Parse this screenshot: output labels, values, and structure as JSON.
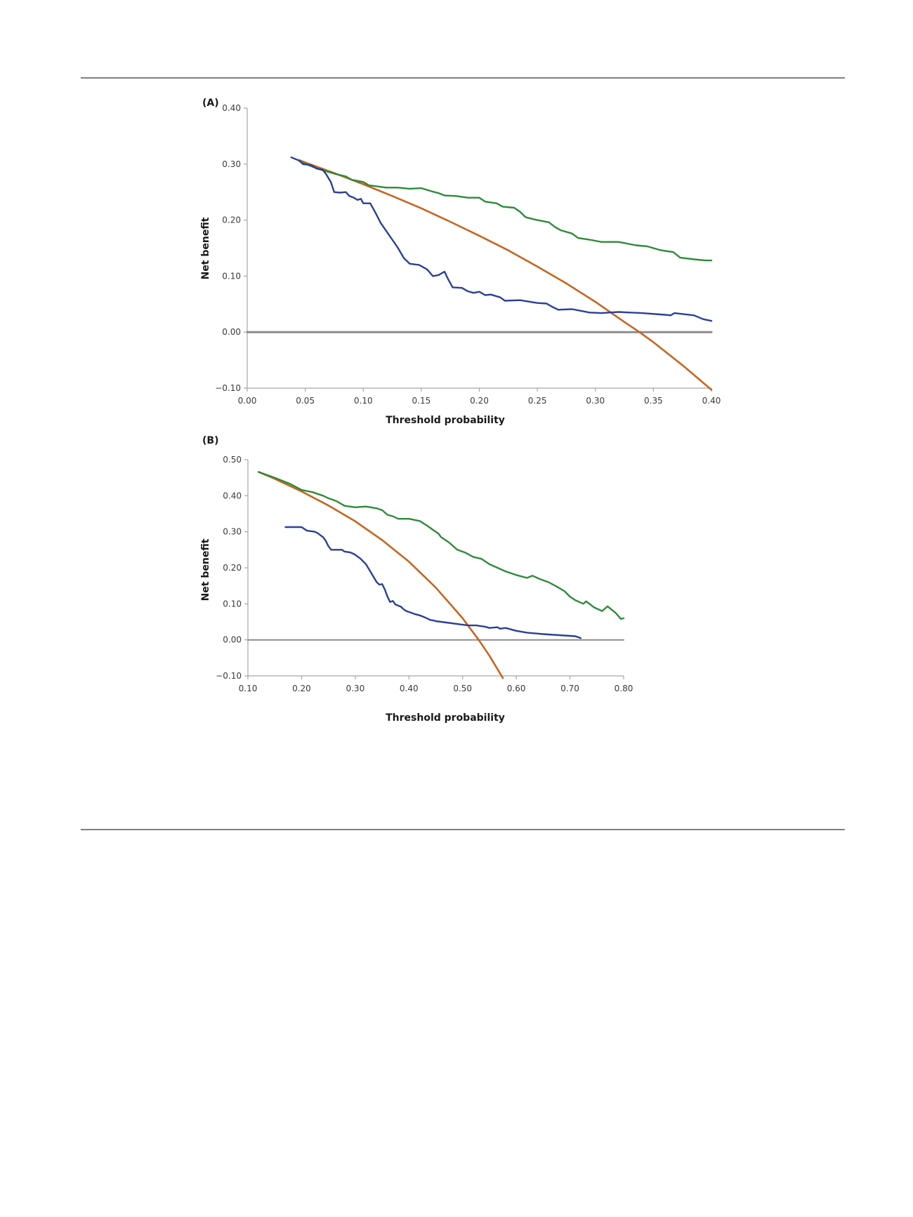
{
  "colors": {
    "model_blue": "#2b3f99",
    "model_green": "#2e8b3a",
    "treat_all_orange": "#c8651e",
    "treat_none_gray": "#8c8c8c",
    "axis": "#a6a6a6"
  },
  "chart_data": [
    {
      "type": "line",
      "panel_label": "(A)",
      "title": "",
      "xlabel": "Threshold probability",
      "ylabel": "Net benefit",
      "xlim": [
        0.0,
        0.4
      ],
      "ylim": [
        -0.1,
        0.4
      ],
      "grid": false,
      "legend": "none",
      "x_ticks": [
        "0.00",
        "0.05",
        "0.10",
        "0.15",
        "0.20",
        "0.25",
        "0.30",
        "0.35",
        "0.40"
      ],
      "y_ticks": [
        "−0.10",
        "0.00",
        "0.10",
        "0.20",
        "0.30",
        "0.40"
      ],
      "x_tick_values": [
        0.0,
        0.05,
        0.1,
        0.15,
        0.2,
        0.25,
        0.3,
        0.35,
        0.4
      ],
      "y_tick_values": [
        -0.1,
        0.0,
        0.1,
        0.2,
        0.3,
        0.4
      ],
      "series": [
        {
          "name": "blue",
          "color_key": "model_blue",
          "points": [
            [
              0.038,
              0.312
            ],
            [
              0.045,
              0.306
            ],
            [
              0.048,
              0.3
            ],
            [
              0.055,
              0.298
            ],
            [
              0.06,
              0.292
            ],
            [
              0.065,
              0.29
            ],
            [
              0.068,
              0.282
            ],
            [
              0.072,
              0.268
            ],
            [
              0.075,
              0.25
            ],
            [
              0.08,
              0.249
            ],
            [
              0.085,
              0.25
            ],
            [
              0.088,
              0.243
            ],
            [
              0.092,
              0.24
            ],
            [
              0.095,
              0.236
            ],
            [
              0.098,
              0.238
            ],
            [
              0.1,
              0.23
            ],
            [
              0.106,
              0.23
            ],
            [
              0.11,
              0.215
            ],
            [
              0.115,
              0.195
            ],
            [
              0.12,
              0.18
            ],
            [
              0.125,
              0.165
            ],
            [
              0.13,
              0.15
            ],
            [
              0.135,
              0.132
            ],
            [
              0.14,
              0.122
            ],
            [
              0.148,
              0.12
            ],
            [
              0.155,
              0.112
            ],
            [
              0.16,
              0.1
            ],
            [
              0.165,
              0.102
            ],
            [
              0.17,
              0.108
            ],
            [
              0.173,
              0.095
            ],
            [
              0.177,
              0.08
            ],
            [
              0.185,
              0.079
            ],
            [
              0.19,
              0.073
            ],
            [
              0.195,
              0.07
            ],
            [
              0.2,
              0.072
            ],
            [
              0.205,
              0.066
            ],
            [
              0.21,
              0.067
            ],
            [
              0.218,
              0.062
            ],
            [
              0.222,
              0.056
            ],
            [
              0.235,
              0.057
            ],
            [
              0.25,
              0.052
            ],
            [
              0.258,
              0.051
            ],
            [
              0.262,
              0.046
            ],
            [
              0.268,
              0.04
            ],
            [
              0.28,
              0.041
            ],
            [
              0.295,
              0.035
            ],
            [
              0.305,
              0.034
            ],
            [
              0.32,
              0.036
            ],
            [
              0.34,
              0.034
            ],
            [
              0.36,
              0.031
            ],
            [
              0.365,
              0.03
            ],
            [
              0.368,
              0.034
            ],
            [
              0.385,
              0.03
            ],
            [
              0.393,
              0.023
            ],
            [
              0.4,
              0.02
            ]
          ]
        },
        {
          "name": "green",
          "color_key": "model_green",
          "points": [
            [
              0.045,
              0.305
            ],
            [
              0.06,
              0.292
            ],
            [
              0.075,
              0.283
            ],
            [
              0.085,
              0.278
            ],
            [
              0.09,
              0.272
            ],
            [
              0.1,
              0.268
            ],
            [
              0.105,
              0.262
            ],
            [
              0.12,
              0.258
            ],
            [
              0.13,
              0.258
            ],
            [
              0.14,
              0.256
            ],
            [
              0.15,
              0.257
            ],
            [
              0.158,
              0.252
            ],
            [
              0.165,
              0.248
            ],
            [
              0.17,
              0.244
            ],
            [
              0.18,
              0.243
            ],
            [
              0.19,
              0.24
            ],
            [
              0.2,
              0.24
            ],
            [
              0.205,
              0.233
            ],
            [
              0.215,
              0.23
            ],
            [
              0.22,
              0.224
            ],
            [
              0.23,
              0.222
            ],
            [
              0.235,
              0.215
            ],
            [
              0.24,
              0.205
            ],
            [
              0.25,
              0.2
            ],
            [
              0.26,
              0.196
            ],
            [
              0.265,
              0.188
            ],
            [
              0.27,
              0.182
            ],
            [
              0.28,
              0.176
            ],
            [
              0.285,
              0.168
            ],
            [
              0.295,
              0.165
            ],
            [
              0.305,
              0.161
            ],
            [
              0.32,
              0.161
            ],
            [
              0.335,
              0.155
            ],
            [
              0.345,
              0.153
            ],
            [
              0.355,
              0.147
            ],
            [
              0.36,
              0.145
            ],
            [
              0.367,
              0.143
            ],
            [
              0.373,
              0.133
            ],
            [
              0.385,
              0.13
            ],
            [
              0.395,
              0.128
            ],
            [
              0.4,
              0.128
            ]
          ]
        },
        {
          "name": "orange",
          "color_key": "treat_all_orange",
          "points": [
            [
              0.045,
              0.307
            ],
            [
              0.05,
              0.303
            ],
            [
              0.075,
              0.284
            ],
            [
              0.1,
              0.264
            ],
            [
              0.125,
              0.243
            ],
            [
              0.15,
              0.221
            ],
            [
              0.175,
              0.197
            ],
            [
              0.2,
              0.172
            ],
            [
              0.225,
              0.146
            ],
            [
              0.25,
              0.117
            ],
            [
              0.275,
              0.087
            ],
            [
              0.3,
              0.054
            ],
            [
              0.325,
              0.018
            ],
            [
              0.338,
              0.0
            ],
            [
              0.35,
              -0.018
            ],
            [
              0.375,
              -0.059
            ],
            [
              0.4,
              -0.103
            ]
          ]
        },
        {
          "name": "gray",
          "color_key": "treat_none_gray",
          "points": [
            [
              0.0,
              0.0
            ],
            [
              0.4,
              0.0
            ]
          ]
        }
      ]
    },
    {
      "type": "line",
      "panel_label": "(B)",
      "title": "",
      "xlabel": "Threshold probability",
      "ylabel": "Net benefit",
      "xlim": [
        0.1,
        0.8
      ],
      "ylim": [
        -0.1,
        0.5
      ],
      "grid": false,
      "legend": "none",
      "x_ticks": [
        "0.10",
        "0.20",
        "0.30",
        "0.40",
        "0.50",
        "0.60",
        "0.70",
        "0.80"
      ],
      "y_ticks": [
        "−0.10",
        "0.00",
        "0.10",
        "0.20",
        "0.30",
        "0.40",
        "0.50"
      ],
      "x_tick_values": [
        0.1,
        0.2,
        0.3,
        0.4,
        0.5,
        0.6,
        0.7,
        0.8
      ],
      "y_tick_values": [
        -0.1,
        0.0,
        0.1,
        0.2,
        0.3,
        0.4,
        0.5
      ],
      "series": [
        {
          "name": "blue",
          "color_key": "model_blue",
          "points": [
            [
              0.17,
              0.313
            ],
            [
              0.2,
              0.313
            ],
            [
              0.21,
              0.303
            ],
            [
              0.225,
              0.3
            ],
            [
              0.23,
              0.296
            ],
            [
              0.24,
              0.285
            ],
            [
              0.245,
              0.275
            ],
            [
              0.25,
              0.26
            ],
            [
              0.255,
              0.25
            ],
            [
              0.275,
              0.25
            ],
            [
              0.28,
              0.245
            ],
            [
              0.29,
              0.243
            ],
            [
              0.295,
              0.24
            ],
            [
              0.3,
              0.236
            ],
            [
              0.31,
              0.225
            ],
            [
              0.32,
              0.21
            ],
            [
              0.33,
              0.185
            ],
            [
              0.34,
              0.16
            ],
            [
              0.345,
              0.153
            ],
            [
              0.35,
              0.155
            ],
            [
              0.355,
              0.14
            ],
            [
              0.36,
              0.12
            ],
            [
              0.365,
              0.105
            ],
            [
              0.37,
              0.108
            ],
            [
              0.375,
              0.098
            ],
            [
              0.385,
              0.092
            ],
            [
              0.39,
              0.085
            ],
            [
              0.395,
              0.08
            ],
            [
              0.405,
              0.075
            ],
            [
              0.41,
              0.072
            ],
            [
              0.42,
              0.068
            ],
            [
              0.43,
              0.062
            ],
            [
              0.44,
              0.055
            ],
            [
              0.445,
              0.054
            ],
            [
              0.45,
              0.052
            ],
            [
              0.47,
              0.048
            ],
            [
              0.49,
              0.044
            ],
            [
              0.51,
              0.04
            ],
            [
              0.525,
              0.04
            ],
            [
              0.54,
              0.037
            ],
            [
              0.55,
              0.033
            ],
            [
              0.565,
              0.035
            ],
            [
              0.57,
              0.031
            ],
            [
              0.58,
              0.033
            ],
            [
              0.6,
              0.025
            ],
            [
              0.62,
              0.02
            ],
            [
              0.65,
              0.016
            ],
            [
              0.68,
              0.013
            ],
            [
              0.71,
              0.01
            ],
            [
              0.72,
              0.005
            ]
          ]
        },
        {
          "name": "green",
          "color_key": "model_green",
          "points": [
            [
              0.12,
              0.466
            ],
            [
              0.15,
              0.45
            ],
            [
              0.18,
              0.432
            ],
            [
              0.2,
              0.416
            ],
            [
              0.22,
              0.41
            ],
            [
              0.24,
              0.4
            ],
            [
              0.25,
              0.393
            ],
            [
              0.265,
              0.385
            ],
            [
              0.28,
              0.372
            ],
            [
              0.3,
              0.368
            ],
            [
              0.32,
              0.37
            ],
            [
              0.34,
              0.365
            ],
            [
              0.35,
              0.36
            ],
            [
              0.36,
              0.347
            ],
            [
              0.37,
              0.343
            ],
            [
              0.38,
              0.336
            ],
            [
              0.4,
              0.336
            ],
            [
              0.42,
              0.33
            ],
            [
              0.435,
              0.316
            ],
            [
              0.445,
              0.305
            ],
            [
              0.455,
              0.295
            ],
            [
              0.46,
              0.285
            ],
            [
              0.475,
              0.27
            ],
            [
              0.49,
              0.25
            ],
            [
              0.505,
              0.242
            ],
            [
              0.52,
              0.23
            ],
            [
              0.535,
              0.225
            ],
            [
              0.55,
              0.21
            ],
            [
              0.565,
              0.2
            ],
            [
              0.58,
              0.19
            ],
            [
              0.6,
              0.18
            ],
            [
              0.62,
              0.172
            ],
            [
              0.63,
              0.178
            ],
            [
              0.645,
              0.168
            ],
            [
              0.66,
              0.16
            ],
            [
              0.675,
              0.148
            ],
            [
              0.69,
              0.135
            ],
            [
              0.7,
              0.12
            ],
            [
              0.71,
              0.11
            ],
            [
              0.725,
              0.1
            ],
            [
              0.73,
              0.107
            ],
            [
              0.745,
              0.09
            ],
            [
              0.76,
              0.08
            ],
            [
              0.77,
              0.093
            ],
            [
              0.785,
              0.075
            ],
            [
              0.795,
              0.058
            ],
            [
              0.8,
              0.06
            ]
          ]
        },
        {
          "name": "orange",
          "color_key": "treat_all_orange",
          "points": [
            [
              0.12,
              0.466
            ],
            [
              0.15,
              0.447
            ],
            [
              0.2,
              0.412
            ],
            [
              0.25,
              0.373
            ],
            [
              0.3,
              0.329
            ],
            [
              0.35,
              0.277
            ],
            [
              0.4,
              0.217
            ],
            [
              0.45,
              0.145
            ],
            [
              0.5,
              0.06
            ],
            [
              0.53,
              0.0
            ],
            [
              0.55,
              -0.044
            ],
            [
              0.575,
              -0.106
            ]
          ]
        },
        {
          "name": "gray",
          "color_key": "treat_none_gray",
          "points": [
            [
              0.1,
              0.0
            ],
            [
              0.8,
              0.0
            ]
          ]
        }
      ]
    }
  ]
}
